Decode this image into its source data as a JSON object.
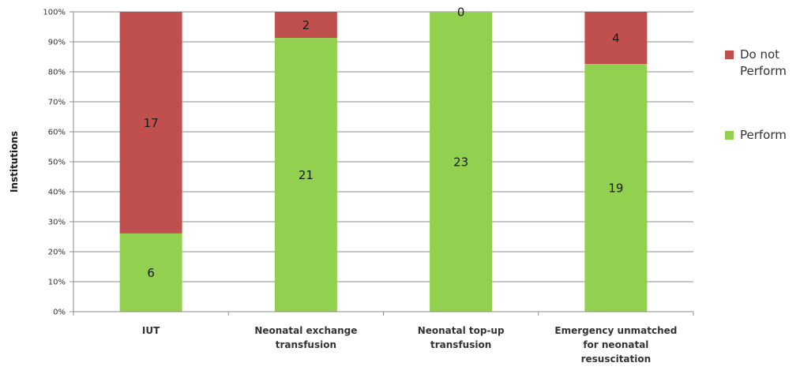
{
  "chart_data": {
    "type": "bar",
    "stacked": "percent",
    "ylabel": "Institutions",
    "xlabel": "",
    "title": "",
    "ylim": [
      0,
      100
    ],
    "y_ticks": [
      "0%",
      "10%",
      "20%",
      "30%",
      "40%",
      "50%",
      "60%",
      "70%",
      "80%",
      "90%",
      "100%"
    ],
    "categories": [
      [
        "IUT"
      ],
      [
        "Neonatal exchange",
        "transfusion"
      ],
      [
        "Neonatal top-up",
        "transfusion"
      ],
      [
        "Emergency unmatched",
        "for neonatal",
        "resuscitation"
      ]
    ],
    "series": [
      {
        "name": "Perform",
        "color": "#92d050",
        "values": [
          6,
          21,
          23,
          19
        ]
      },
      {
        "name": "Do not Perform",
        "color": "#c0504d",
        "values": [
          17,
          2,
          0,
          4
        ]
      }
    ],
    "legend": {
      "position": "right",
      "entries": [
        {
          "lines": [
            "Do not",
            "Perform"
          ],
          "color": "#c0504d"
        },
        {
          "lines": [
            "Perform"
          ],
          "color": "#92d050"
        }
      ]
    },
    "grid": true
  }
}
